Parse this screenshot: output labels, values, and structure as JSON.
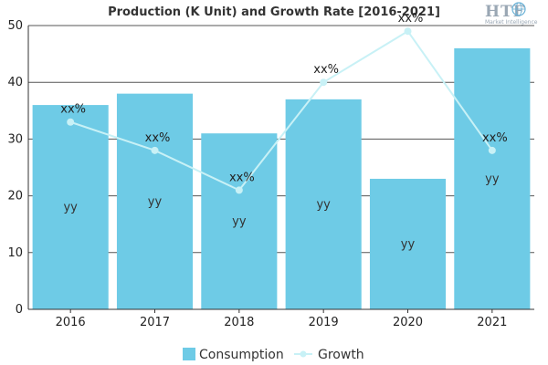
{
  "chart_data": {
    "type": "bar",
    "title": "Production (K Unit) and Growth Rate [2016-2021]",
    "categories": [
      "2016",
      "2017",
      "2018",
      "2019",
      "2020",
      "2021"
    ],
    "ylim": [
      0,
      50
    ],
    "yticks": [
      0,
      10,
      20,
      30,
      40,
      50
    ],
    "grid": true,
    "legend_position": "bottom",
    "series": [
      {
        "name": "Consumption",
        "type": "bar",
        "color": "#6ecbe6",
        "values": [
          36,
          38,
          31,
          37,
          23,
          46
        ],
        "labels": [
          "yy",
          "yy",
          "yy",
          "yy",
          "yy",
          "yy"
        ]
      },
      {
        "name": "Growth",
        "type": "line",
        "color": "#c8f1f6",
        "values": [
          33,
          28,
          21,
          40,
          49,
          28
        ],
        "labels": [
          "xx%",
          "xx%",
          "xx%",
          "xx%",
          "xx%",
          "xx%"
        ]
      }
    ]
  },
  "logo": {
    "text": "HTF",
    "subtext": "Market Intelligence",
    "icon": "globe-icon"
  }
}
